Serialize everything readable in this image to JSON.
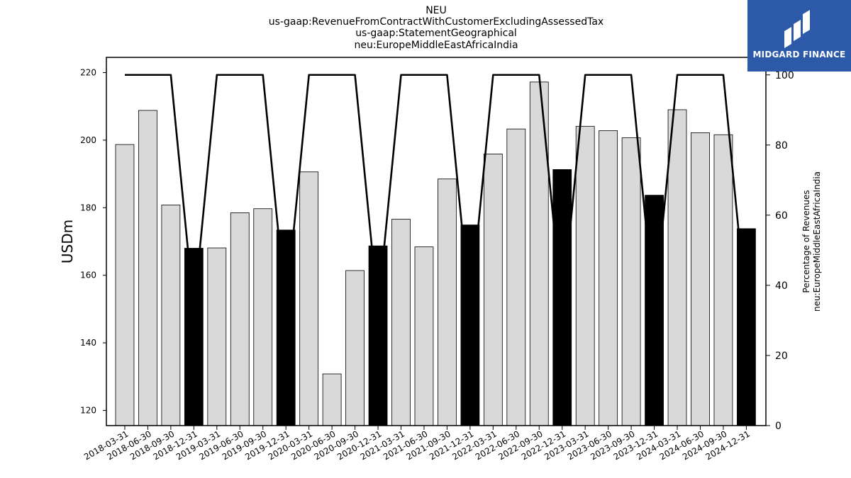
{
  "title_lines": [
    "NEU",
    "us-gaap:RevenueFromContractWithCustomerExcludingAssessedTax",
    "us-gaap:StatementGeographical",
    "neu:EuropeMiddleEastAfricaIndia"
  ],
  "brand": {
    "name": "MIDGARD FINANCE",
    "color": "#2c5aa8"
  },
  "chart_data": {
    "type": "bar",
    "categories": [
      "2018-03-31",
      "2018-06-30",
      "2018-09-30",
      "2018-12-31",
      "2019-03-31",
      "2019-06-30",
      "2019-09-30",
      "2019-12-31",
      "2020-03-31",
      "2020-06-30",
      "2020-09-30",
      "2020-12-31",
      "2021-03-31",
      "2021-06-30",
      "2021-09-30",
      "2021-12-31",
      "2022-03-31",
      "2022-06-30",
      "2022-09-30",
      "2022-12-31",
      "2023-03-31",
      "2023-06-30",
      "2023-09-30",
      "2023-12-31",
      "2024-03-31",
      "2024-06-30",
      "2024-09-30",
      "2024-12-31"
    ],
    "series": [
      {
        "values": [
          198.7,
          208.8,
          180.8,
          168.0,
          168.1,
          178.5,
          179.7,
          173.4,
          190.6,
          130.8,
          161.4,
          168.7,
          176.6,
          168.4,
          188.5,
          174.9,
          195.9,
          203.3,
          217.2,
          191.3,
          204.1,
          202.8,
          200.7,
          183.7,
          209.0,
          202.2,
          201.6,
          173.8
        ]
      },
      {
        "values": [
          100,
          100,
          100,
          33,
          100,
          100,
          100,
          33,
          100,
          100,
          100,
          33,
          100,
          100,
          100,
          33,
          100,
          100,
          100,
          33,
          100,
          100,
          100,
          33,
          100,
          100,
          100,
          33
        ],
        "axis": "right",
        "type": "line"
      }
    ],
    "bar_colors": [
      "#d9d9d9",
      "#d9d9d9",
      "#d9d9d9",
      "#000000",
      "#d9d9d9",
      "#d9d9d9",
      "#d9d9d9",
      "#000000",
      "#d9d9d9",
      "#d9d9d9",
      "#d9d9d9",
      "#000000",
      "#d9d9d9",
      "#d9d9d9",
      "#d9d9d9",
      "#000000",
      "#d9d9d9",
      "#d9d9d9",
      "#d9d9d9",
      "#000000",
      "#d9d9d9",
      "#d9d9d9",
      "#d9d9d9",
      "#000000",
      "#d9d9d9",
      "#d9d9d9",
      "#d9d9d9",
      "#000000"
    ],
    "ylabel": "USDm",
    "y2label": [
      "Percentage of Revenues",
      "neu:EuropeMiddleEastAfricaIndia"
    ],
    "ylim": [
      115.5,
      224.5
    ],
    "y2lim": [
      0,
      105
    ],
    "yticks": [
      "120",
      "140",
      "160",
      "180",
      "200",
      "220"
    ],
    "y2ticks": [
      "0",
      "20",
      "40",
      "60",
      "80",
      "100"
    ],
    "grid": false
  }
}
